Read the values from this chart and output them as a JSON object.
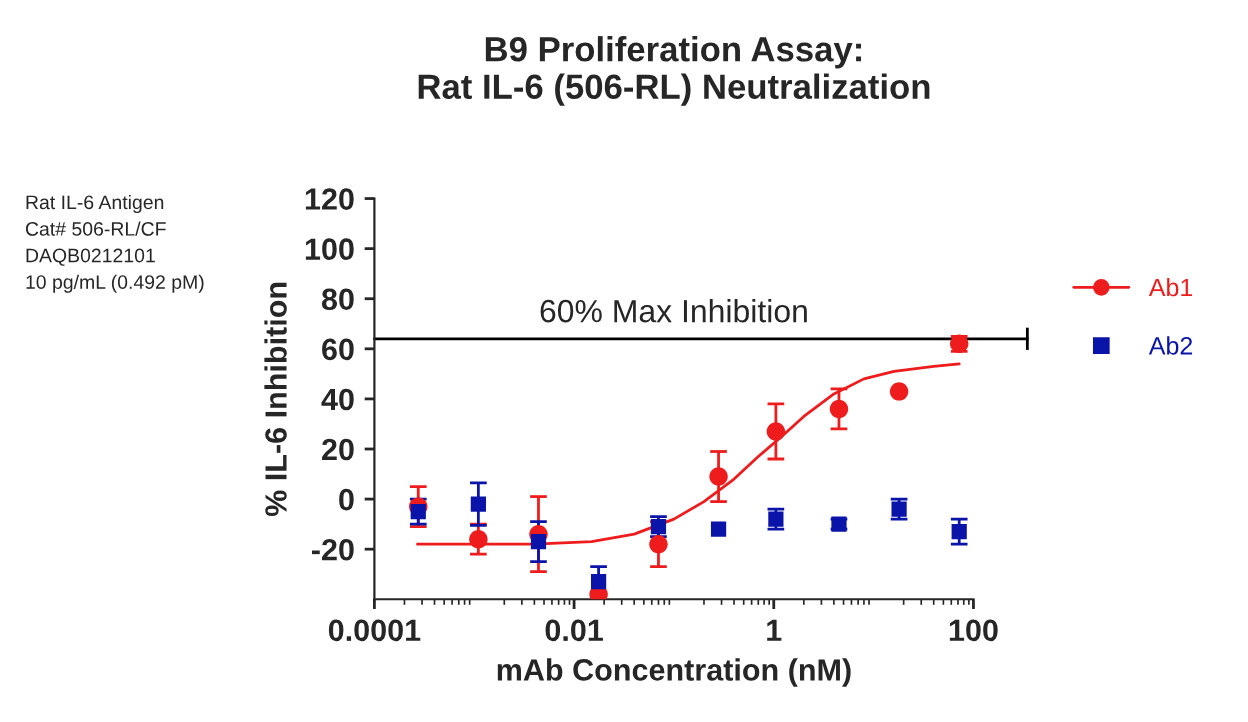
{
  "chart_data": {
    "type": "scatter",
    "title": "B9 Proliferation Assay:\nRat IL-6 (506-RL) Neutralization",
    "xlabel": "mAb Concentration (nM)",
    "ylabel": "% IL-6 Inhibition",
    "annotations": [
      "Rat IL-6 Antigen\nCat# 506-RL/CF\nDAQB0212101\n10 pg/mL (0.492 pM)"
    ],
    "log": "x",
    "xlim": [
      0.0001,
      100
    ],
    "xticks": [
      {
        "value": 0.0001,
        "label": "0.0001"
      },
      {
        "value": 0.01,
        "label": "0.01"
      },
      1,
      100
    ],
    "ylim": [
      -40,
      120
    ],
    "yticks": [
      -20,
      0,
      20,
      40,
      60,
      80,
      100,
      120
    ],
    "grid": false,
    "legend": "right",
    "ref_lines": [
      {
        "axis": "y",
        "value": 64,
        "label": "60% Max Inhibition",
        "color": "#000000"
      }
    ],
    "series": [
      {
        "name": "Ab1",
        "marker": "circle",
        "color": "#ee1c1c",
        "x": [
          0.000275,
          0.0011,
          0.0044,
          0.0176,
          0.07,
          0.28,
          1.05,
          4.5,
          18,
          72
        ],
        "values": [
          -3,
          -16,
          -14,
          -38,
          -18,
          9,
          27,
          36,
          43,
          62
        ],
        "errors": [
          8,
          6,
          15,
          null,
          9,
          10,
          11,
          8,
          null,
          3
        ]
      },
      {
        "name": "Ab2",
        "marker": "square",
        "color": "#0a14a8",
        "x": [
          0.000275,
          0.0011,
          0.0044,
          0.0176,
          0.07,
          0.28,
          1.05,
          4.5,
          18,
          72
        ],
        "values": [
          -5,
          -2,
          -17,
          -33,
          -11,
          -12,
          -8,
          -10,
          -4,
          -13
        ],
        "errors": [
          5,
          8.5,
          8,
          6,
          4,
          null,
          4,
          2,
          4,
          5
        ]
      },
      {
        "type": "line",
        "color": "#ee1c1c",
        "x": [
          0.00027,
          0.001,
          0.004,
          0.015,
          0.04,
          0.1,
          0.2,
          0.4,
          0.7,
          1.2,
          2,
          4,
          8,
          16,
          40,
          72
        ],
        "values": [
          -18,
          -18,
          -18,
          -17,
          -14,
          -8,
          -1,
          8,
          17,
          25,
          33,
          42,
          48,
          51,
          53,
          54
        ]
      }
    ]
  }
}
